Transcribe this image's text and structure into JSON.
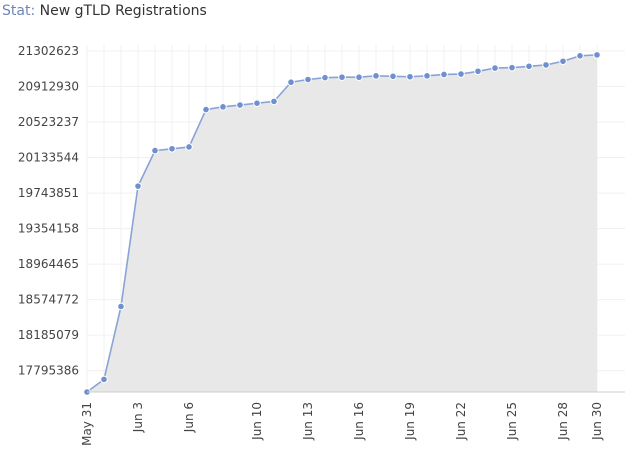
{
  "header": {
    "prefix": "Stat:",
    "title": "New gTLD Registrations"
  },
  "chart_data": {
    "type": "area",
    "title": "New gTLD Registrations",
    "xlabel": "",
    "ylabel": "",
    "x": [
      "May 31",
      "Jun 1",
      "Jun 2",
      "Jun 3",
      "Jun 4",
      "Jun 5",
      "Jun 6",
      "Jun 7",
      "Jun 8",
      "Jun 9",
      "Jun 10",
      "Jun 11",
      "Jun 12",
      "Jun 13",
      "Jun 14",
      "Jun 15",
      "Jun 16",
      "Jun 17",
      "Jun 18",
      "Jun 19",
      "Jun 20",
      "Jun 21",
      "Jun 22",
      "Jun 23",
      "Jun 24",
      "Jun 25",
      "Jun 26",
      "Jun 27",
      "Jun 28",
      "Jun 29",
      "Jun 30"
    ],
    "x_tick_labels": [
      "May 31",
      "Jun 3",
      "Jun 6",
      "Jun 10",
      "Jun 13",
      "Jun 16",
      "Jun 19",
      "Jun 22",
      "Jun 25",
      "Jun 28",
      "Jun 30"
    ],
    "y_tick_labels": [
      "21302623",
      "20912930",
      "20523237",
      "20133544",
      "19743851",
      "19354158",
      "18964465",
      "18574772",
      "18185079",
      "17795386"
    ],
    "ylim": [
      17561570,
      21302623
    ],
    "series": [
      {
        "values": [
          17561570,
          17700000,
          18500000,
          19820000,
          20210000,
          20230000,
          20250000,
          20660000,
          20690000,
          20710000,
          20730000,
          20750000,
          20960000,
          20990000,
          21010000,
          21015000,
          21015000,
          21030000,
          21025000,
          21020000,
          21030000,
          21045000,
          21050000,
          21080000,
          21115000,
          21120000,
          21135000,
          21150000,
          21190000,
          21250000,
          21260000
        ]
      }
    ],
    "grid": true,
    "legend": "none",
    "colors": {
      "line": "#8aa3d6",
      "marker": "#6f8fcf",
      "fill": "#e8e8e8",
      "grid": "#f0f0f0",
      "axis": "#cccccc"
    }
  }
}
